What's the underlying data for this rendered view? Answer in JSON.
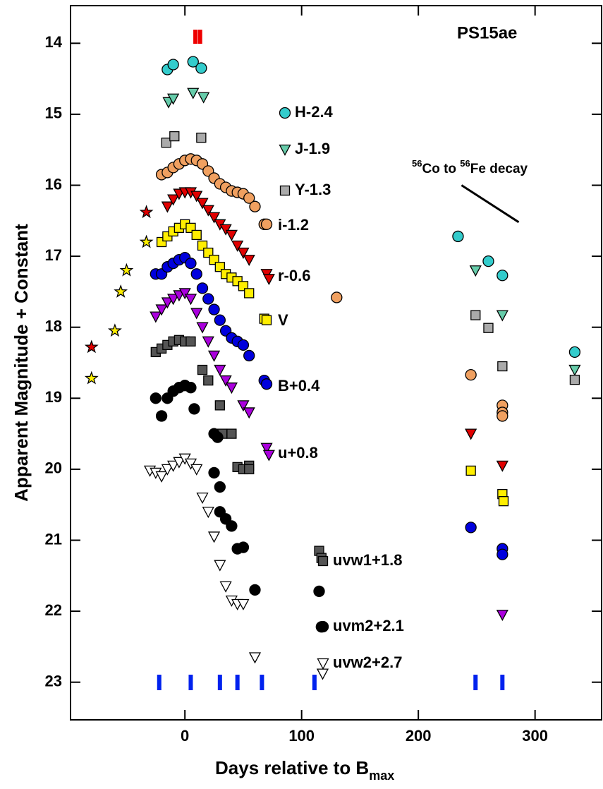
{
  "chart_data": {
    "type": "scatter",
    "title": "PS15ae",
    "ylabel": "Apparent Magnitude + Constant",
    "xlabel": "Days relative to B",
    "xlabel_sub": "max",
    "decay_label": [
      "56",
      "Co to ",
      "56",
      "Fe decay"
    ],
    "xlim": [
      -98,
      357
    ],
    "ylim": [
      23.53,
      13.47
    ],
    "xticks": [
      0,
      100,
      200,
      300
    ],
    "yticks": [
      14,
      15,
      16,
      17,
      18,
      19,
      20,
      21,
      22,
      23
    ],
    "decay_line": {
      "x": [
        237,
        286
      ],
      "values": [
        16.0,
        16.52
      ]
    },
    "spectra_epochs": [
      -22,
      5,
      30,
      45,
      66,
      111,
      249,
      272
    ],
    "spectra_color": "#0022ee",
    "top_epochs": [
      9,
      13
    ],
    "top_color": "#ee0000",
    "series": [
      {
        "name": "H-2.4",
        "color": "#33cccc",
        "marker": "circle",
        "x": [
          -15,
          -10,
          7,
          14,
          234,
          260,
          272,
          334
        ],
        "values": [
          14.37,
          14.3,
          14.26,
          14.35,
          16.72,
          17.07,
          17.27,
          18.35
        ]
      },
      {
        "name": "J-1.9",
        "color": "#66ccaa",
        "marker": "tri",
        "x": [
          -14,
          -10,
          7,
          16,
          249,
          272,
          334
        ],
        "values": [
          14.83,
          14.78,
          14.7,
          14.76,
          17.2,
          17.83,
          18.6
        ]
      },
      {
        "name": "Y-1.3",
        "color": "#aaaaaa",
        "marker": "square",
        "x": [
          -16,
          -9,
          14,
          249,
          260,
          272,
          334
        ],
        "values": [
          15.4,
          15.31,
          15.33,
          17.83,
          18.01,
          18.55,
          18.74
        ]
      },
      {
        "name": "i-1.2",
        "color": "#f0a060",
        "marker": "circle",
        "x": [
          -20,
          -15,
          -10,
          -5,
          0,
          5,
          10,
          15,
          20,
          25,
          30,
          35,
          40,
          45,
          50,
          55,
          60,
          68,
          70,
          130,
          245,
          272,
          272,
          272
        ],
        "values": [
          15.85,
          15.82,
          15.75,
          15.7,
          15.65,
          15.63,
          15.65,
          15.7,
          15.8,
          15.9,
          15.98,
          16.03,
          16.08,
          16.1,
          16.12,
          16.18,
          16.3,
          16.55,
          16.55,
          17.58,
          18.67,
          19.1,
          19.2,
          19.25
        ]
      },
      {
        "name": "r-0.6",
        "color": "#e00000",
        "marker": "tri",
        "x": [
          -15,
          -10,
          -5,
          0,
          5,
          10,
          15,
          20,
          25,
          30,
          35,
          40,
          45,
          50,
          55,
          70,
          72,
          245,
          272
        ],
        "values": [
          16.3,
          16.2,
          16.12,
          16.1,
          16.1,
          16.15,
          16.25,
          16.35,
          16.45,
          16.55,
          16.62,
          16.7,
          16.85,
          16.95,
          17.05,
          17.25,
          17.32,
          19.5,
          19.95
        ]
      },
      {
        "name": "V",
        "color": "#ffee00",
        "marker": "square",
        "x": [
          -20,
          -15,
          -10,
          -5,
          0,
          5,
          10,
          15,
          20,
          25,
          30,
          35,
          40,
          45,
          50,
          55,
          68,
          70,
          245,
          272,
          273
        ],
        "values": [
          16.8,
          16.72,
          16.65,
          16.6,
          16.55,
          16.6,
          16.7,
          16.85,
          16.95,
          17.05,
          17.15,
          17.25,
          17.3,
          17.35,
          17.42,
          17.52,
          17.88,
          17.9,
          20.02,
          20.35,
          20.45
        ]
      },
      {
        "name": "B+0.4",
        "color": "#0000dd",
        "marker": "circle",
        "x": [
          -25,
          -20,
          -15,
          -10,
          -5,
          0,
          5,
          10,
          15,
          20,
          25,
          30,
          35,
          40,
          45,
          50,
          55,
          68,
          70,
          245,
          272,
          272
        ],
        "values": [
          17.25,
          17.25,
          17.15,
          17.1,
          17.05,
          17.02,
          17.1,
          17.25,
          17.45,
          17.6,
          17.75,
          17.9,
          18.05,
          18.15,
          18.2,
          18.25,
          18.4,
          18.75,
          18.8,
          20.82,
          21.12,
          21.2
        ]
      },
      {
        "name": "u+0.8",
        "color": "#aa00dd",
        "marker": "tri",
        "x": [
          -25,
          -20,
          -15,
          -10,
          -5,
          0,
          5,
          10,
          15,
          20,
          25,
          30,
          35,
          40,
          50,
          55,
          70,
          72,
          272
        ],
        "values": [
          17.85,
          17.75,
          17.65,
          17.6,
          17.55,
          17.52,
          17.6,
          17.8,
          18.0,
          18.2,
          18.4,
          18.6,
          18.75,
          18.85,
          19.1,
          19.2,
          19.7,
          19.8,
          22.05
        ]
      },
      {
        "name": "uvw1+1.8",
        "color": "#555555",
        "marker": "square",
        "x": [
          -25,
          -20,
          -15,
          -10,
          -5,
          0,
          5,
          15,
          20,
          30,
          40,
          55,
          32,
          45,
          50,
          55,
          115,
          117
        ],
        "values": [
          18.35,
          18.3,
          18.25,
          18.2,
          18.18,
          18.2,
          18.2,
          18.6,
          18.75,
          19.1,
          19.5,
          19.95,
          19.5,
          19.97,
          20.0,
          20.0,
          21.15,
          21.25
        ]
      },
      {
        "name": "uvm2+2.1",
        "color": "#000000",
        "marker": "circle",
        "x": [
          -25,
          -20,
          -15,
          -10,
          -5,
          0,
          5,
          8,
          25,
          28,
          25,
          30,
          30,
          35,
          40,
          45,
          50,
          60,
          115,
          117
        ],
        "values": [
          19.0,
          19.25,
          19.0,
          18.9,
          18.85,
          18.82,
          18.85,
          19.15,
          19.5,
          19.55,
          20.05,
          20.25,
          20.6,
          20.7,
          20.8,
          21.12,
          21.1,
          21.7,
          21.72,
          22.22
        ]
      },
      {
        "name": "uvw2+2.7",
        "color": "#ffffff",
        "marker": "tri",
        "x": [
          -30,
          -25,
          -20,
          -15,
          -10,
          -5,
          0,
          5,
          10,
          15,
          20,
          25,
          30,
          35,
          40,
          45,
          50,
          60,
          118
        ],
        "values": [
          20.02,
          20.05,
          20.1,
          20.0,
          19.95,
          19.9,
          19.85,
          19.92,
          20.0,
          20.4,
          20.6,
          20.95,
          21.35,
          21.65,
          21.85,
          21.9,
          21.9,
          22.65,
          22.88
        ]
      },
      {
        "color": "#ffee00",
        "marker": "star",
        "x": [
          -80,
          -60,
          -55,
          -50,
          -33
        ],
        "values": [
          18.72,
          18.05,
          17.5,
          17.2,
          16.8
        ]
      },
      {
        "color": "#e00000",
        "marker": "star",
        "x": [
          -80,
          -33
        ],
        "values": [
          18.28,
          16.38
        ]
      }
    ]
  }
}
